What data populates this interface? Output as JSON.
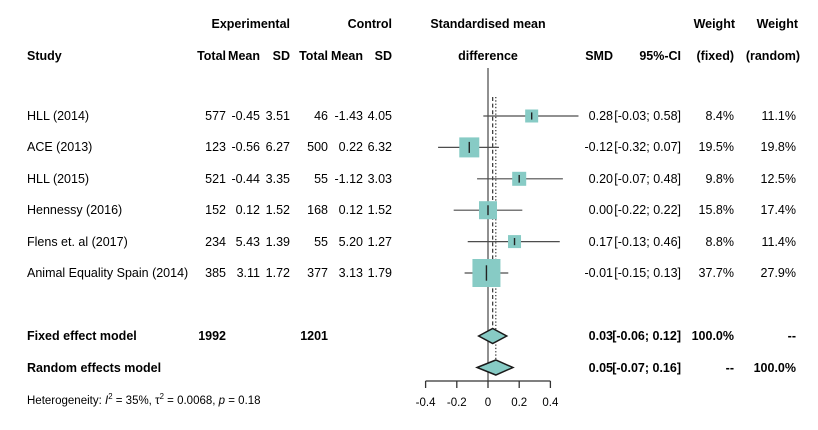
{
  "header": {
    "group_experimental": "Experimental",
    "group_control": "Control",
    "plot_title_line1": "Standardised mean",
    "plot_title_line2": "difference",
    "study": "Study",
    "total": "Total",
    "mean": "Mean",
    "sd": "SD",
    "smd": "SMD",
    "ci": "95%-CI",
    "weight": "Weight",
    "weight_fixed": "(fixed)",
    "weight_random": "(random)"
  },
  "heterogeneity": {
    "prefix": "Heterogeneity: ",
    "i_sym": "I",
    "i_sup": "2",
    "seg1": " = 35%, ",
    "tau_sym": "τ",
    "tau_sup": "2",
    "seg2": " = 0.0068, ",
    "p_sym": "p",
    "seg3": " = 0.18"
  },
  "chart_data": {
    "type": "forest",
    "x_axis": {
      "min": -0.4,
      "max": 0.4,
      "ticks": [
        -0.4,
        -0.2,
        0,
        0.2,
        0.4
      ],
      "tick_labels": [
        "-0.4",
        "-0.2",
        "0",
        "0.2",
        "0.4"
      ]
    },
    "zero_line": 0,
    "fixed_effect_line": 0.03,
    "random_effects_line": 0.05,
    "square_color": "#87cbc5",
    "diamond_color": "#87cbc5",
    "diamond_border": "#1a1a1a",
    "line_color": "#4d4d4d",
    "studies": [
      {
        "study": "HLL (2014)",
        "exp_total": "577",
        "exp_mean": "-0.45",
        "exp_sd": "3.51",
        "ctl_total": "46",
        "ctl_mean": "-1.43",
        "ctl_sd": "4.05",
        "smd": 0.28,
        "ci_low": -0.03,
        "ci_high": 0.58,
        "smd_label": "0.28",
        "ci_label": "[-0.03; 0.58]",
        "w_fixed_label": "8.4%",
        "w_random_label": "11.1%",
        "w_fixed_pct": 8.4
      },
      {
        "study": "ACE (2013)",
        "exp_total": "123",
        "exp_mean": "-0.56",
        "exp_sd": "6.27",
        "ctl_total": "500",
        "ctl_mean": "0.22",
        "ctl_sd": "6.32",
        "smd": -0.12,
        "ci_low": -0.32,
        "ci_high": 0.07,
        "smd_label": "-0.12",
        "ci_label": "[-0.32; 0.07]",
        "w_fixed_label": "19.5%",
        "w_random_label": "19.8%",
        "w_fixed_pct": 19.5
      },
      {
        "study": "HLL (2015)",
        "exp_total": "521",
        "exp_mean": "-0.44",
        "exp_sd": "3.35",
        "ctl_total": "55",
        "ctl_mean": "-1.12",
        "ctl_sd": "3.03",
        "smd": 0.2,
        "ci_low": -0.07,
        "ci_high": 0.48,
        "smd_label": "0.20",
        "ci_label": "[-0.07; 0.48]",
        "w_fixed_label": "9.8%",
        "w_random_label": "12.5%",
        "w_fixed_pct": 9.8
      },
      {
        "study": "Hennessy (2016)",
        "exp_total": "152",
        "exp_mean": "0.12",
        "exp_sd": "1.52",
        "ctl_total": "168",
        "ctl_mean": "0.12",
        "ctl_sd": "1.52",
        "smd": 0.0,
        "ci_low": -0.22,
        "ci_high": 0.22,
        "smd_label": "0.00",
        "ci_label": "[-0.22; 0.22]",
        "w_fixed_label": "15.8%",
        "w_random_label": "17.4%",
        "w_fixed_pct": 15.8
      },
      {
        "study": "Flens et. al (2017)",
        "exp_total": "234",
        "exp_mean": "5.43",
        "exp_sd": "1.39",
        "ctl_total": "55",
        "ctl_mean": "5.20",
        "ctl_sd": "1.27",
        "smd": 0.17,
        "ci_low": -0.13,
        "ci_high": 0.46,
        "smd_label": "0.17",
        "ci_label": "[-0.13; 0.46]",
        "w_fixed_label": "8.8%",
        "w_random_label": "11.4%",
        "w_fixed_pct": 8.8
      },
      {
        "study": "Animal Equality Spain (2014)",
        "exp_total": "385",
        "exp_mean": "3.11",
        "exp_sd": "1.72",
        "ctl_total": "377",
        "ctl_mean": "3.13",
        "ctl_sd": "1.79",
        "smd": -0.01,
        "ci_low": -0.15,
        "ci_high": 0.13,
        "smd_label": "-0.01",
        "ci_label": "[-0.15; 0.13]",
        "w_fixed_label": "37.7%",
        "w_random_label": "27.9%",
        "w_fixed_pct": 37.7
      }
    ],
    "summaries": [
      {
        "label": "Fixed effect model",
        "exp_total": "1992",
        "ctl_total": "1201",
        "smd": 0.03,
        "ci_low": -0.06,
        "ci_high": 0.12,
        "smd_label": "0.03",
        "ci_label": "[-0.06; 0.12]",
        "w_fixed_label": "100.0%",
        "w_random_label": "--"
      },
      {
        "label": "Random effects model",
        "exp_total": "",
        "ctl_total": "",
        "smd": 0.05,
        "ci_low": -0.07,
        "ci_high": 0.16,
        "smd_label": "0.05",
        "ci_label": "[-0.07; 0.16]",
        "w_fixed_label": "--",
        "w_random_label": "100.0%"
      }
    ]
  }
}
